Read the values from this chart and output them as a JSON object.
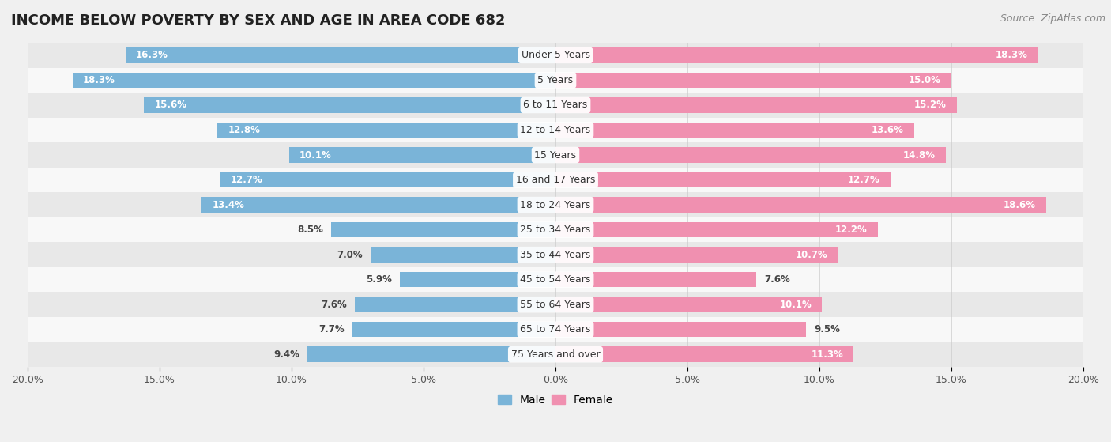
{
  "title": "INCOME BELOW POVERTY BY SEX AND AGE IN AREA CODE 682",
  "source": "Source: ZipAtlas.com",
  "categories": [
    "Under 5 Years",
    "5 Years",
    "6 to 11 Years",
    "12 to 14 Years",
    "15 Years",
    "16 and 17 Years",
    "18 to 24 Years",
    "25 to 34 Years",
    "35 to 44 Years",
    "45 to 54 Years",
    "55 to 64 Years",
    "65 to 74 Years",
    "75 Years and over"
  ],
  "male_values": [
    16.3,
    18.3,
    15.6,
    12.8,
    10.1,
    12.7,
    13.4,
    8.5,
    7.0,
    5.9,
    7.6,
    7.7,
    9.4
  ],
  "female_values": [
    18.3,
    15.0,
    15.2,
    13.6,
    14.8,
    12.7,
    18.6,
    12.2,
    10.7,
    7.6,
    10.1,
    9.5,
    11.3
  ],
  "male_color": "#7ab4d8",
  "female_color": "#f090b0",
  "male_label": "Male",
  "female_label": "Female",
  "xlim": 20.0,
  "bar_height": 0.62,
  "bg_color": "#f0f0f0",
  "row_bg_colors": [
    "#e8e8e8",
    "#f8f8f8"
  ],
  "title_fontsize": 13,
  "source_fontsize": 9,
  "label_fontsize": 8.5,
  "tick_fontsize": 9,
  "category_fontsize": 9
}
